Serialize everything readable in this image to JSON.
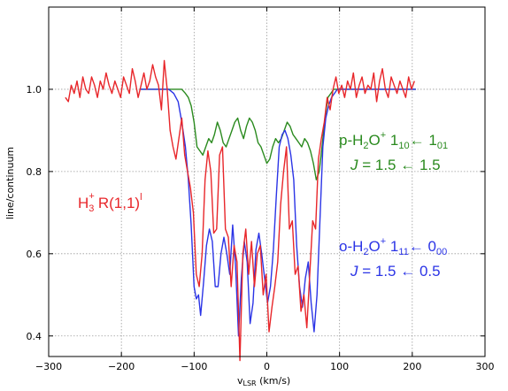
{
  "chart_data": {
    "type": "line",
    "xlabel": "v",
    "xlabel_sub": "LSR",
    "xlabel_unit": " (km/s)",
    "ylabel": "line/continuum",
    "xlim": [
      -300,
      300
    ],
    "ylim": [
      0.35,
      1.2
    ],
    "xticks": [
      -300,
      -200,
      -100,
      0,
      100,
      200,
      300
    ],
    "yticks": [
      0.4,
      0.6,
      0.8,
      1.0
    ],
    "ytick_labels": [
      "0.4",
      "0.6",
      "0.8",
      "1.0"
    ],
    "xtick_labels": [
      "−300",
      "−200",
      "−100",
      "0",
      "100",
      "200",
      "300"
    ],
    "grid": true,
    "grid_style": "dotted",
    "series": [
      {
        "color": "#e8262a",
        "x": [
          -277,
          -273,
          -269,
          -265,
          -261,
          -257,
          -253,
          -249,
          -245,
          -241,
          -237,
          -233,
          -229,
          -225,
          -221,
          -217,
          -213,
          -209,
          -205,
          -201,
          -197,
          -193,
          -189,
          -185,
          -181,
          -177,
          -173,
          -169,
          -165,
          -161,
          -157,
          -153,
          -149,
          -145,
          -141,
          -137,
          -133,
          -129,
          -125,
          -121,
          -117,
          -113,
          -109,
          -105,
          -101,
          -97,
          -93,
          -89,
          -85,
          -81,
          -77,
          -73,
          -69,
          -65,
          -61,
          -57,
          -53,
          -49,
          -45,
          -41,
          -37,
          -33,
          -29,
          -25,
          -21,
          -17,
          -13,
          -9,
          -5,
          -1,
          3,
          7,
          11,
          15,
          19,
          23,
          27,
          31,
          35,
          39,
          43,
          47,
          51,
          55,
          59,
          63,
          67,
          71,
          75,
          79,
          83,
          87,
          91,
          95,
          99,
          103,
          107,
          111,
          115,
          119,
          123,
          127,
          131,
          135,
          139,
          143,
          147,
          151,
          155,
          159,
          163,
          167,
          171,
          175,
          179,
          183,
          187,
          191,
          195,
          199,
          203
        ],
        "y": [
          0.98,
          0.97,
          1.01,
          0.99,
          1.02,
          0.98,
          1.03,
          1.0,
          0.99,
          1.03,
          1.01,
          0.98,
          1.02,
          1.0,
          1.04,
          1.01,
          0.99,
          1.02,
          1.0,
          0.98,
          1.03,
          1.01,
          0.99,
          1.05,
          1.02,
          0.98,
          1.01,
          1.04,
          1.0,
          1.02,
          1.06,
          1.03,
          1.01,
          0.95,
          1.07,
          1.0,
          0.9,
          0.86,
          0.83,
          0.88,
          0.93,
          0.84,
          0.8,
          0.76,
          0.7,
          0.55,
          0.52,
          0.6,
          0.78,
          0.85,
          0.8,
          0.65,
          0.66,
          0.84,
          0.86,
          0.66,
          0.64,
          0.52,
          0.62,
          0.58,
          0.34,
          0.6,
          0.66,
          0.55,
          0.63,
          0.52,
          0.6,
          0.62,
          0.5,
          0.55,
          0.41,
          0.47,
          0.52,
          0.58,
          0.72,
          0.8,
          0.86,
          0.66,
          0.68,
          0.55,
          0.57,
          0.46,
          0.5,
          0.42,
          0.55,
          0.68,
          0.66,
          0.83,
          0.88,
          0.92,
          0.98,
          0.95,
          1.0,
          1.03,
          0.99,
          1.01,
          0.98,
          1.02,
          1.0,
          1.04,
          0.98,
          1.01,
          1.03,
          0.99,
          1.01,
          1.0,
          1.04,
          0.97,
          1.02,
          1.05,
          1.0,
          0.98,
          1.03,
          1.01,
          0.99,
          1.02,
          1.0,
          0.98,
          1.03,
          1.0,
          1.02
        ]
      },
      {
        "color": "#2b34e6",
        "x": [
          -175,
          -150,
          -135,
          -128,
          -122,
          -117,
          -112,
          -108,
          -104,
          -100,
          -97,
          -94,
          -91,
          -87,
          -83,
          -79,
          -75,
          -71,
          -67,
          -63,
          -59,
          -55,
          -51,
          -47,
          -43,
          -39,
          -35,
          -31,
          -27,
          -23,
          -19,
          -15,
          -11,
          -7,
          -3,
          1,
          5,
          9,
          13,
          17,
          21,
          25,
          29,
          33,
          37,
          41,
          45,
          49,
          53,
          57,
          61,
          65,
          69,
          73,
          77,
          81,
          85,
          89,
          93,
          97,
          101,
          110,
          130,
          160,
          205
        ],
        "y": [
          1.0,
          1.0,
          1.0,
          0.99,
          0.97,
          0.92,
          0.86,
          0.78,
          0.67,
          0.52,
          0.49,
          0.5,
          0.45,
          0.53,
          0.62,
          0.66,
          0.63,
          0.52,
          0.52,
          0.6,
          0.64,
          0.6,
          0.55,
          0.67,
          0.57,
          0.4,
          0.54,
          0.63,
          0.58,
          0.43,
          0.48,
          0.61,
          0.65,
          0.6,
          0.54,
          0.48,
          0.52,
          0.61,
          0.74,
          0.86,
          0.89,
          0.9,
          0.88,
          0.84,
          0.78,
          0.62,
          0.52,
          0.47,
          0.54,
          0.58,
          0.48,
          0.41,
          0.5,
          0.68,
          0.86,
          0.93,
          0.96,
          0.98,
          0.99,
          1.0,
          1.0,
          1.0,
          1.0,
          1.0,
          1.0
        ]
      },
      {
        "color": "#2a8a1e",
        "x": [
          -175,
          -150,
          -135,
          -128,
          -122,
          -117,
          -112,
          -108,
          -104,
          -100,
          -96,
          -92,
          -88,
          -84,
          -80,
          -76,
          -72,
          -68,
          -64,
          -60,
          -56,
          -52,
          -48,
          -44,
          -40,
          -36,
          -32,
          -28,
          -24,
          -20,
          -16,
          -12,
          -8,
          -4,
          0,
          4,
          8,
          12,
          16,
          20,
          24,
          28,
          32,
          36,
          40,
          44,
          48,
          52,
          56,
          60,
          64,
          68,
          72,
          76,
          80,
          84,
          88,
          92,
          96,
          100,
          110,
          130,
          160,
          205
        ],
        "y": [
          1.0,
          1.0,
          1.0,
          1.0,
          1.0,
          1.0,
          0.99,
          0.98,
          0.96,
          0.92,
          0.86,
          0.85,
          0.84,
          0.86,
          0.88,
          0.87,
          0.89,
          0.92,
          0.9,
          0.87,
          0.86,
          0.88,
          0.9,
          0.92,
          0.93,
          0.9,
          0.88,
          0.91,
          0.93,
          0.92,
          0.9,
          0.87,
          0.86,
          0.84,
          0.82,
          0.83,
          0.86,
          0.88,
          0.87,
          0.88,
          0.9,
          0.92,
          0.91,
          0.89,
          0.88,
          0.87,
          0.86,
          0.88,
          0.87,
          0.85,
          0.82,
          0.78,
          0.8,
          0.86,
          0.93,
          0.98,
          0.99,
          1.0,
          1.0,
          1.0,
          1.0,
          1.0,
          1.0,
          1.0
        ]
      }
    ]
  },
  "annotations": {
    "h3": {
      "main": "H",
      "sub1": "3",
      "sup1": "+",
      "rest": "R(1,1)",
      "sup2": "l",
      "color": "#e8262a"
    },
    "p_water": {
      "prefix": "p-H",
      "sub_a": "2",
      "mid": "O",
      "sup": "+",
      "space": " 1",
      "sub_b": "10",
      "arrow": "← 1",
      "sub_c": "01",
      "j_label": "J",
      "j_rest": " = 1.5 ← 1.5",
      "color": "#2a8a1e"
    },
    "o_water": {
      "prefix": "o-H",
      "sub_a": "2",
      "mid": "O",
      "sup": "+",
      "space": " 1",
      "sub_b": "11",
      "arrow": "← 0",
      "sub_c": "00",
      "j_label": "J",
      "j_rest": " = 1.5 ← 0.5",
      "color": "#2b34e6"
    }
  }
}
